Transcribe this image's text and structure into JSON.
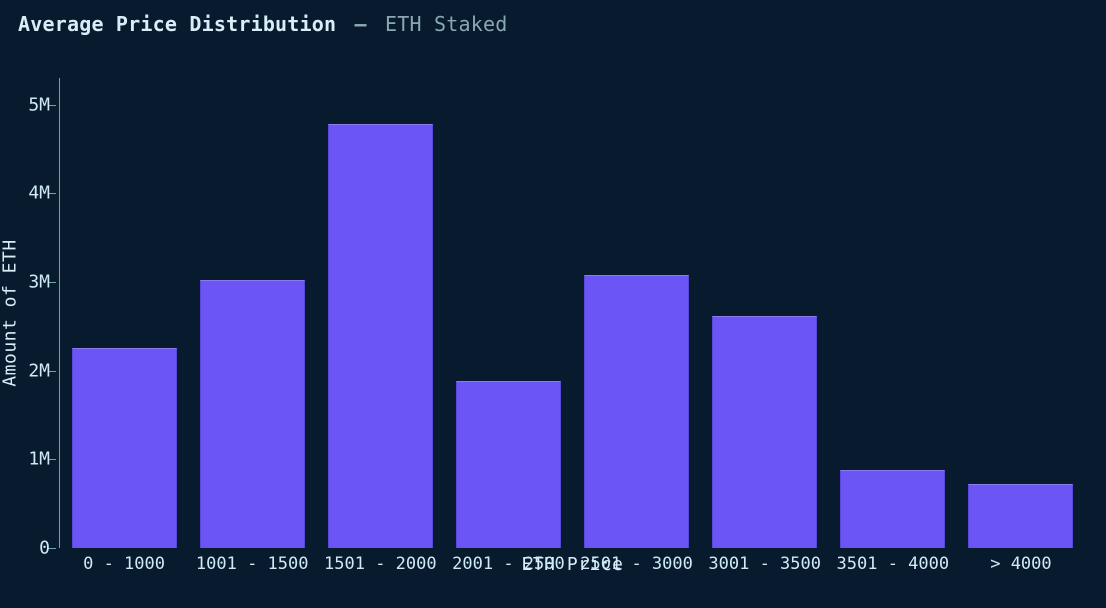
{
  "title": {
    "main": "Average Price Distribution",
    "separator": "–",
    "sub": "ETH Staked",
    "main_color": "#d6eef7",
    "sub_color": "#8aa8b4",
    "fontsize": 20,
    "fontweight": 600
  },
  "chart": {
    "type": "bar",
    "background_color": "#071a2e",
    "bar_color": "#6b55f5",
    "bar_border_color": "#5a48d8",
    "axis_line_color": "#6fa2b5",
    "tick_font_color": "#cfeaf4",
    "tick_fontsize": 18,
    "font_family": "monospace",
    "bar_gap_ratio": 0.18,
    "x_axis": {
      "title": "ETH Price",
      "categories": [
        "0 - 1000",
        "1001 - 1500",
        "1501 - 2000",
        "2001 - 2500",
        "2501 - 3000",
        "3001 - 3500",
        "3501 - 4000",
        "> 4000"
      ]
    },
    "y_axis": {
      "title": "Amount of ETH",
      "min": 0,
      "max": 5300000,
      "ticks": [
        0,
        1000000,
        2000000,
        3000000,
        4000000,
        5000000
      ],
      "tick_labels": [
        "0",
        "1M",
        "2M",
        "3M",
        "4M",
        "5M"
      ]
    },
    "values": [
      2250000,
      3020000,
      4780000,
      1880000,
      3080000,
      2620000,
      880000,
      720000
    ]
  }
}
